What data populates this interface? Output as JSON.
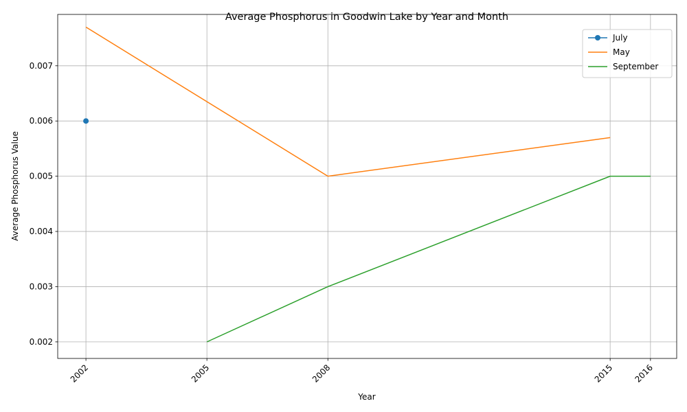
{
  "chart_data": {
    "type": "line",
    "title": "Average Phosphorus in Goodwin Lake by Year and Month",
    "xlabel": "Year",
    "ylabel": "Average Phosphorus Value",
    "x_ticks": [
      2002,
      2005,
      2008,
      2015,
      2016
    ],
    "y_ticks": [
      "0.002",
      "0.003",
      "0.004",
      "0.005",
      "0.006",
      "0.007"
    ],
    "xlim": [
      2001.3,
      2016.65
    ],
    "ylim": [
      0.0017,
      0.00793
    ],
    "grid": true,
    "legend_position": "top-right",
    "series": [
      {
        "name": "July",
        "color": "#1f77b4",
        "marker": "circle",
        "points": [
          [
            2002,
            0.006
          ]
        ]
      },
      {
        "name": "May",
        "color": "#ff7f0e",
        "marker": "none",
        "points": [
          [
            2002,
            0.0077
          ],
          [
            2008,
            0.005
          ],
          [
            2015,
            0.0057
          ]
        ]
      },
      {
        "name": "September",
        "color": "#2ca02c",
        "marker": "none",
        "points": [
          [
            2005,
            0.002
          ],
          [
            2008,
            0.003
          ],
          [
            2015,
            0.005
          ],
          [
            2016,
            0.005
          ]
        ]
      }
    ]
  }
}
